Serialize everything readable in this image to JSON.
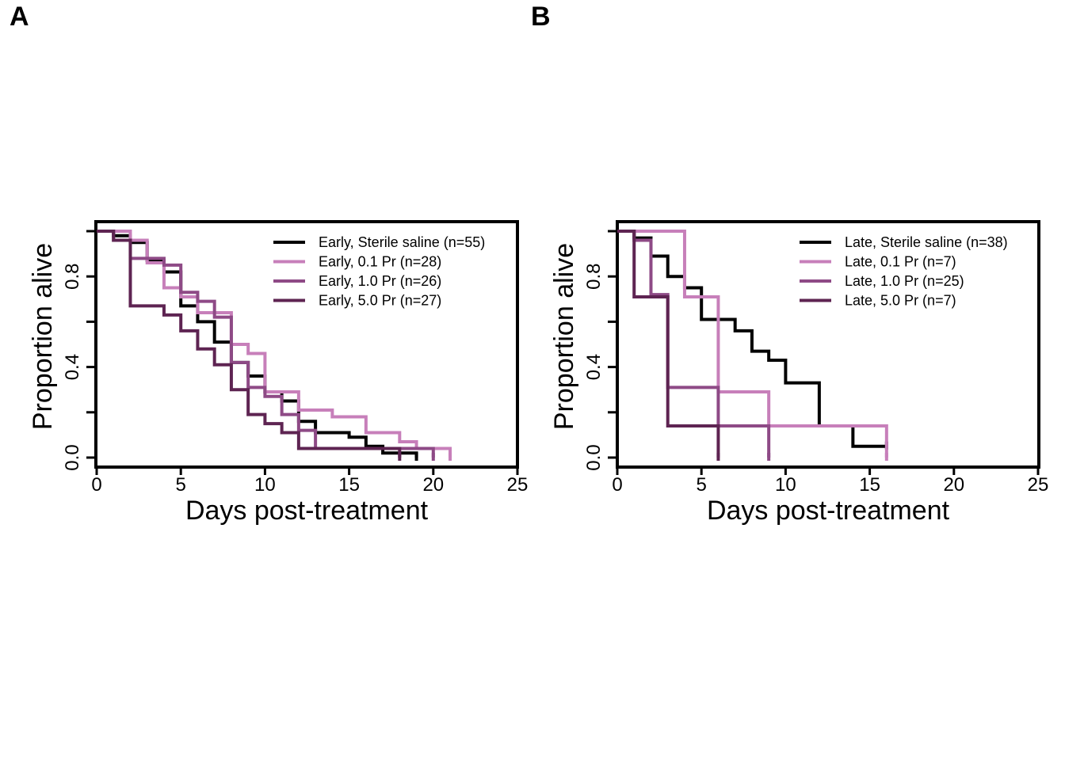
{
  "panels": {
    "a": {
      "letter": "A"
    },
    "b": {
      "letter": "B"
    }
  },
  "colors": {
    "sterile_saline": "#000000",
    "pr_0_1": "#c77fba",
    "pr_1_0": "#8e4a86",
    "pr_5_0": "#5e2452"
  },
  "chart_data": [
    {
      "type": "line",
      "step": true,
      "panel": "A",
      "xlabel": "Days post-treatment",
      "ylabel": "Proportion alive",
      "xlim": [
        0,
        25
      ],
      "ylim": [
        0,
        1
      ],
      "xticks": [
        0,
        5,
        10,
        15,
        20,
        25
      ],
      "yticks": [
        0.0,
        0.4,
        0.8
      ],
      "xtick_labels": [
        "0",
        "5",
        "10",
        "15",
        "20",
        "25"
      ],
      "ytick_labels": [
        "0.0",
        "0.4",
        "0.8"
      ],
      "legend_position": "top-right",
      "grid": false,
      "series": [
        {
          "name": "Early, Sterile saline (n=55)",
          "color": "#000000",
          "x": [
            0,
            1,
            2,
            3,
            4,
            5,
            6,
            7,
            8,
            9,
            10,
            11,
            12,
            13,
            14,
            15,
            16,
            17,
            18,
            19
          ],
          "y": [
            1.0,
            0.98,
            0.95,
            0.87,
            0.82,
            0.67,
            0.6,
            0.51,
            0.42,
            0.36,
            0.29,
            0.25,
            0.16,
            0.11,
            0.11,
            0.09,
            0.05,
            0.02,
            0.02,
            0.0
          ]
        },
        {
          "name": "Early, 0.1 Pr (n=28)",
          "color": "#c77fba",
          "x": [
            0,
            2,
            3,
            4,
            5,
            6,
            8,
            9,
            10,
            12,
            13,
            14,
            16,
            17,
            18,
            19,
            20,
            21
          ],
          "y": [
            1.0,
            0.96,
            0.86,
            0.75,
            0.71,
            0.64,
            0.5,
            0.46,
            0.29,
            0.21,
            0.21,
            0.18,
            0.11,
            0.11,
            0.07,
            0.04,
            0.04,
            0.0
          ]
        },
        {
          "name": "Early, 1.0 Pr (n=26)",
          "color": "#8e4a86",
          "x": [
            0,
            1,
            2,
            3,
            4,
            5,
            6,
            7,
            8,
            9,
            10,
            11,
            12,
            13,
            14,
            20
          ],
          "y": [
            1.0,
            0.96,
            0.88,
            0.88,
            0.85,
            0.73,
            0.69,
            0.62,
            0.42,
            0.31,
            0.27,
            0.19,
            0.12,
            0.04,
            0.04,
            0.0
          ]
        },
        {
          "name": "Early, 5.0 Pr (n=27)",
          "color": "#5e2452",
          "x": [
            0,
            1,
            2,
            4,
            5,
            6,
            7,
            8,
            9,
            10,
            11,
            12,
            18
          ],
          "y": [
            1.0,
            0.96,
            0.67,
            0.63,
            0.56,
            0.48,
            0.41,
            0.3,
            0.19,
            0.15,
            0.11,
            0.04,
            0.0
          ]
        }
      ]
    },
    {
      "type": "line",
      "step": true,
      "panel": "B",
      "xlabel": "Days post-treatment",
      "ylabel": "Proportion alive",
      "xlim": [
        0,
        25
      ],
      "ylim": [
        0,
        1
      ],
      "xticks": [
        0,
        5,
        10,
        15,
        20,
        25
      ],
      "yticks": [
        0.0,
        0.4,
        0.8
      ],
      "xtick_labels": [
        "0",
        "5",
        "10",
        "15",
        "20",
        "25"
      ],
      "ytick_labels": [
        "0.0",
        "0.4",
        "0.8"
      ],
      "legend_position": "top-right",
      "grid": false,
      "series": [
        {
          "name": "Late, Sterile saline (n=38)",
          "color": "#000000",
          "x": [
            0,
            1,
            2,
            3,
            4,
            5,
            6,
            7,
            8,
            9,
            10,
            12,
            14,
            16
          ],
          "y": [
            1.0,
            0.97,
            0.89,
            0.8,
            0.75,
            0.61,
            0.61,
            0.56,
            0.47,
            0.43,
            0.33,
            0.14,
            0.05,
            0.05
          ]
        },
        {
          "name": "Late, 0.1 Pr (n=7)",
          "color": "#c77fba",
          "x": [
            0,
            4,
            6,
            9,
            16
          ],
          "y": [
            1.0,
            0.71,
            0.29,
            0.14,
            0.0
          ]
        },
        {
          "name": "Late, 1.0 Pr (n=25)",
          "color": "#8e4a86",
          "x": [
            0,
            1,
            2,
            3,
            6,
            9
          ],
          "y": [
            1.0,
            0.96,
            0.72,
            0.31,
            0.14,
            0.0
          ]
        },
        {
          "name": "Late, 5.0 Pr (n=7)",
          "color": "#5e2452",
          "x": [
            0,
            1,
            3,
            6
          ],
          "y": [
            1.0,
            0.71,
            0.14,
            0.0
          ]
        }
      ]
    }
  ]
}
